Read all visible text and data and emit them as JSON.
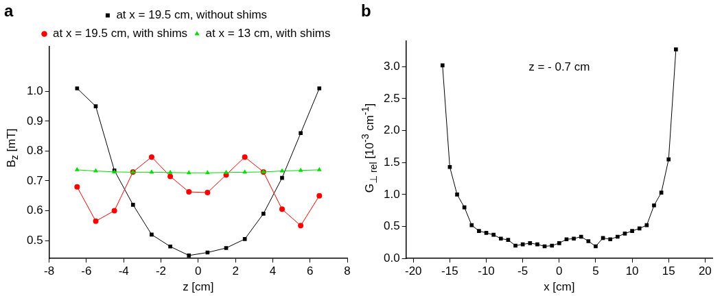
{
  "chart_data": [
    {
      "type": "line",
      "title": "a",
      "xlabel": "z [cm]",
      "ylabel": "B$_{z}$ [mT]",
      "x": [
        -6.5,
        -5.5,
        -4.5,
        -3.5,
        -2.5,
        -1.5,
        -0.5,
        0.5,
        1.5,
        2.5,
        3.5,
        4.5,
        5.5,
        6.5
      ],
      "series": [
        {
          "name": "at x = 19.5 cm, without shims",
          "color": "#000000",
          "marker": "square",
          "values": [
            1.01,
            0.95,
            0.735,
            0.62,
            0.52,
            0.48,
            0.45,
            0.46,
            0.475,
            0.505,
            0.59,
            0.71,
            0.86,
            1.01
          ]
        },
        {
          "name": "at x = 19.5 cm, with shims",
          "color": "#ff0000",
          "marker": "circle",
          "values": [
            0.68,
            0.565,
            0.6,
            0.73,
            0.78,
            0.715,
            0.663,
            0.661,
            0.72,
            0.78,
            0.73,
            0.605,
            0.55,
            0.65
          ]
        },
        {
          "name": "at x = 13 cm, with shims",
          "color": "#00dd00",
          "marker": "triangle",
          "values": [
            0.737,
            0.733,
            0.73,
            0.729,
            0.729,
            0.728,
            0.727,
            0.727,
            0.728,
            0.729,
            0.73,
            0.733,
            0.735,
            0.737
          ]
        }
      ],
      "xlim": [
        -8,
        8
      ],
      "xticks": [
        -8,
        -6,
        -4,
        -2,
        0,
        2,
        4,
        6,
        8
      ],
      "ylim": [
        0.44,
        1.15
      ],
      "yticks": [
        0.5,
        0.6,
        0.7,
        0.8,
        0.9,
        {
          "value": 1,
          "label": "1.0"
        }
      ],
      "grid": false,
      "legend": "top"
    },
    {
      "type": "line",
      "title": "b",
      "xlabel": "x [cm]",
      "ylabel": "G$_{⊥ rel}$ [10$^{-3}$ cm$^{-1}$]",
      "annotations": [
        "z = - 0.7 cm"
      ],
      "x": [
        -16,
        -15,
        -14,
        -13,
        -12,
        -11,
        -10,
        -9,
        -8,
        -7,
        -6,
        -5,
        -4,
        -3,
        -2,
        -1,
        0,
        1,
        2,
        3,
        4,
        5,
        6,
        7,
        8,
        9,
        10,
        11,
        12,
        13,
        14,
        15,
        16
      ],
      "series": [
        {
          "color": "#000000",
          "marker": "square",
          "values": [
            3.02,
            1.43,
            1.0,
            0.8,
            0.52,
            0.43,
            0.4,
            0.37,
            0.31,
            0.29,
            0.2,
            0.22,
            0.24,
            0.22,
            0.19,
            0.2,
            0.24,
            0.3,
            0.31,
            0.34,
            0.27,
            0.19,
            0.32,
            0.3,
            0.34,
            0.39,
            0.43,
            0.47,
            0.52,
            0.83,
            1.03,
            1.55,
            3.27
          ]
        }
      ],
      "xlim": [
        -21,
        21
      ],
      "xticks": [
        -20,
        -15,
        -10,
        -5,
        0,
        5,
        10,
        15,
        20
      ],
      "ylim": [
        0,
        3.4
      ],
      "yticks": [
        {
          "value": 0,
          "label": "0.0"
        },
        0.5,
        {
          "value": 1,
          "label": "1.0"
        },
        1.5,
        {
          "value": 2,
          "label": "2.0"
        },
        2.5,
        {
          "value": 3,
          "label": "3.0"
        }
      ],
      "grid": false,
      "legend": false
    }
  ]
}
